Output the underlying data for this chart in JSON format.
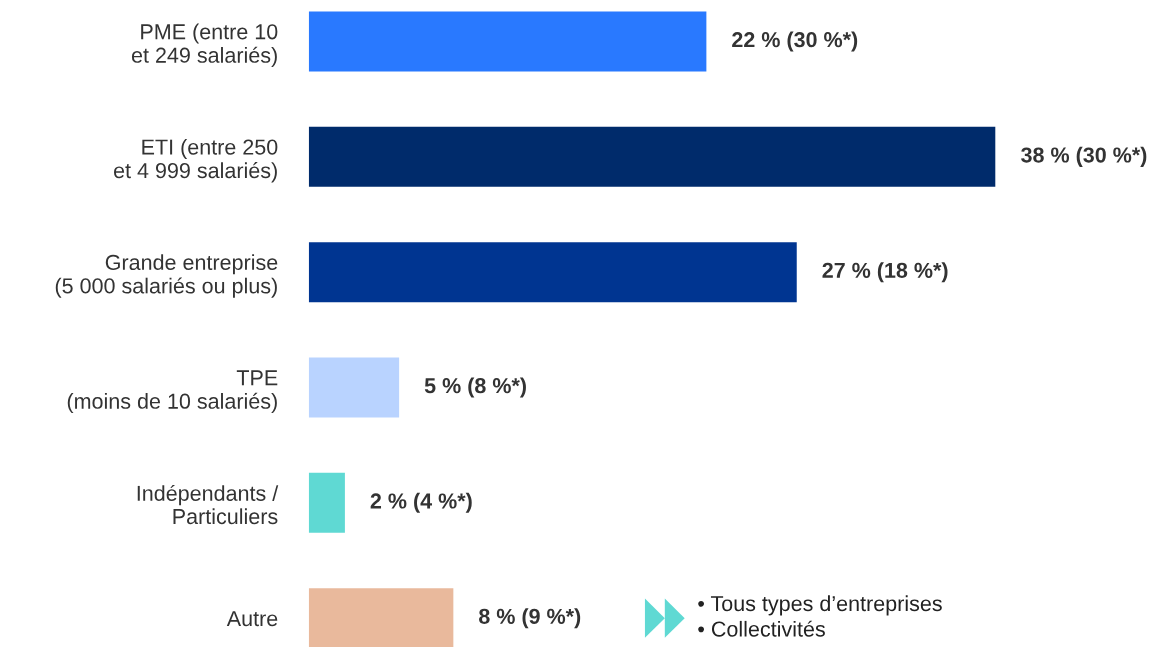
{
  "chart_data": {
    "type": "bar",
    "orientation": "horizontal",
    "categories": [
      "PME (entre 10\net 249 salariés)",
      "ETI (entre 250\net 4 999 salariés)",
      "Grande entreprise\n(5 000 salariés ou plus)",
      "TPE\n(moins de 10 salariés)",
      "Indépendants /\nParticuliers",
      "Autre"
    ],
    "values": [
      22,
      38,
      27,
      5,
      2,
      8
    ],
    "colors": [
      "#2979ff",
      "#002b6b",
      "#003591",
      "#b9d3ff",
      "#5fd9d3",
      "#e9b99c"
    ],
    "value_labels": [
      "22 % (30 %*)",
      "38 % (30 %*)",
      "27 % (18 %*)",
      "5 % (8 %*)",
      "2 % (4 %*)",
      "8 % (9 %*)"
    ],
    "annotations": [
      "• Tous types d’entreprises\n• Collectivités"
    ],
    "grid": false,
    "legend": false
  }
}
